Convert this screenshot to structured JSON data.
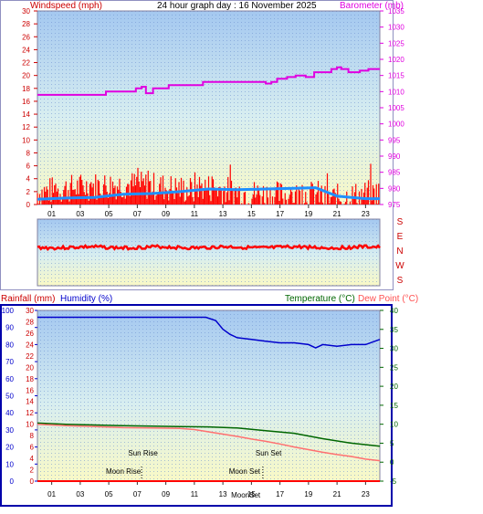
{
  "header": {
    "top_title": "24 hour graph day : 16 November 2025",
    "left_label": "Windspeed (mph)",
    "right_label": "Barometer (mb)",
    "rain_label": "Rainfall (mm)",
    "humidity_label": "Humidity (%)",
    "temp_label": "Temperature (°C)",
    "dew_label": "Dew Point (°C)"
  },
  "colors": {
    "wind": "#ff0000",
    "gust": "#1e90ff",
    "baro": "#e000e0",
    "humidity": "#0000cc",
    "temp": "#006600",
    "dew": "#ff7070",
    "rain": "#ff0000",
    "frame": "#0000aa"
  },
  "chart_data": [
    {
      "type": "line",
      "title": "24 hour graph day : 16 November 2025",
      "x_ticks": [
        "01",
        "03",
        "05",
        "07",
        "09",
        "11",
        "13",
        "15",
        "17",
        "19",
        "21",
        "23"
      ],
      "y_left": {
        "label": "Windspeed (mph)",
        "range": [
          0,
          30
        ],
        "ticks": [
          "0",
          "2",
          "4",
          "6",
          "8",
          "10",
          "12",
          "14",
          "16",
          "18",
          "20",
          "22",
          "24",
          "26",
          "28",
          "30"
        ]
      },
      "y_right": {
        "label": "Barometer (mb)",
        "range": [
          975,
          1035
        ],
        "ticks": [
          "975",
          "980",
          "985",
          "990",
          "995",
          "1000",
          "1005",
          "1010",
          "1015",
          "1020",
          "1025",
          "1030",
          "1035"
        ]
      },
      "series": [
        {
          "name": "Barometer (mb)",
          "axis": "right",
          "x": [
            0,
            4.8,
            6.9,
            7.3,
            7.6,
            8.1,
            8.5,
            9.2,
            11.6,
            14.6,
            16.0,
            16.4,
            16.8,
            17.5,
            18.1,
            18.8,
            19.4,
            20.0,
            20.6,
            21.0,
            21.3,
            21.8,
            22.2,
            22.6,
            23.2,
            23.8,
            24
          ],
          "y": [
            1009,
            1010,
            1011,
            1011.5,
            1009.5,
            1011,
            1011,
            1012,
            1013,
            1013,
            1012.5,
            1013,
            1014,
            1014.5,
            1015,
            1014.5,
            1016,
            1016,
            1017,
            1017.5,
            1017,
            1016,
            1016,
            1016.5,
            1017,
            1017,
            1017
          ]
        },
        {
          "name": "Wind",
          "axis": "left",
          "kind": "bars",
          "approx": "noisy 0-6 mph, peaks ~7-8 mph"
        },
        {
          "name": "Gust",
          "axis": "left",
          "x": [
            0,
            2,
            4,
            6,
            8,
            10,
            12,
            14,
            16,
            18,
            19.5,
            21,
            23,
            24
          ],
          "y": [
            0.8,
            1.0,
            1.1,
            1.6,
            1.7,
            2.0,
            2.4,
            2.3,
            2.4,
            2.5,
            2.6,
            1.3,
            0.9,
            0.9
          ]
        }
      ]
    },
    {
      "type": "line",
      "title": "Wind direction",
      "x_ticks": [
        "01",
        "03",
        "05",
        "07",
        "09",
        "11",
        "13",
        "15",
        "17",
        "19",
        "21",
        "23"
      ],
      "y_labels": [
        "S",
        "E",
        "N",
        "W",
        "S"
      ],
      "series": [
        {
          "name": "Direction",
          "approx_level": "E"
        }
      ]
    },
    {
      "type": "line",
      "x_ticks": [
        "01",
        "03",
        "05",
        "07",
        "09",
        "11",
        "13",
        "15",
        "17",
        "19",
        "21",
        "23"
      ],
      "y_left_rain": {
        "label": "Rainfall (mm)",
        "range": [
          0,
          100
        ],
        "ticks": [
          "0",
          "10",
          "20",
          "30",
          "40",
          "50",
          "60",
          "70",
          "80",
          "90",
          "100"
        ]
      },
      "y_left_humidity": {
        "label": "Humidity (%)",
        "range": [
          0,
          30
        ],
        "ticks": [
          "0",
          "2",
          "4",
          "6",
          "8",
          "10",
          "12",
          "14",
          "16",
          "18",
          "20",
          "22",
          "24",
          "26",
          "28",
          "30"
        ]
      },
      "y_right": {
        "label": "Temperature (°C)",
        "range": [
          -5,
          40
        ],
        "ticks": [
          "-5",
          "0",
          "5",
          "10",
          "15",
          "20",
          "25",
          "30",
          "35",
          "40"
        ]
      },
      "annotations": [
        {
          "text": "Sun Rise",
          "hour": 7.4
        },
        {
          "text": "Sun Set",
          "hour": 16.2
        },
        {
          "text": "Moon Rise",
          "hour": 7.3
        },
        {
          "text": "Moon Set",
          "hour": 15.8
        },
        {
          "text": "MoonSet",
          "hour": 14.6
        }
      ],
      "series": [
        {
          "name": "Humidity (%)",
          "axis": "humidity",
          "x": [
            0,
            4,
            8,
            11.8,
            12.5,
            13,
            13.5,
            14,
            15,
            16,
            17,
            18,
            19,
            19.5,
            20,
            21,
            22,
            23,
            24
          ],
          "y": [
            96,
            96,
            96,
            96,
            94,
            89,
            86,
            84,
            83,
            82,
            81,
            81,
            80,
            78,
            80,
            79,
            80,
            80,
            83
          ]
        },
        {
          "name": "Temperature (°C)",
          "axis": "right",
          "x": [
            0,
            2,
            4,
            6,
            8,
            10,
            12,
            14,
            16,
            18,
            20,
            22,
            24
          ],
          "y": [
            10.3,
            10,
            9.8,
            9.6,
            9.5,
            9.4,
            9.3,
            9.0,
            8.3,
            7.6,
            6.2,
            5.0,
            4.2
          ]
        },
        {
          "name": "Dew Point (°C)",
          "axis": "right",
          "x": [
            0,
            2,
            4,
            6,
            8,
            10,
            11,
            12,
            13,
            14,
            15,
            16,
            17,
            18,
            19,
            20,
            21,
            22,
            23,
            24
          ],
          "y": [
            10.0,
            9.6,
            9.4,
            9.1,
            9.0,
            8.9,
            8.6,
            8.0,
            7.4,
            6.8,
            6.1,
            5.5,
            4.8,
            4.0,
            3.3,
            2.6,
            2.0,
            1.5,
            0.8,
            0.4
          ]
        },
        {
          "name": "Rainfall (mm)",
          "axis": "rain",
          "x": [
            0,
            24
          ],
          "y": [
            0,
            0
          ]
        }
      ]
    }
  ]
}
